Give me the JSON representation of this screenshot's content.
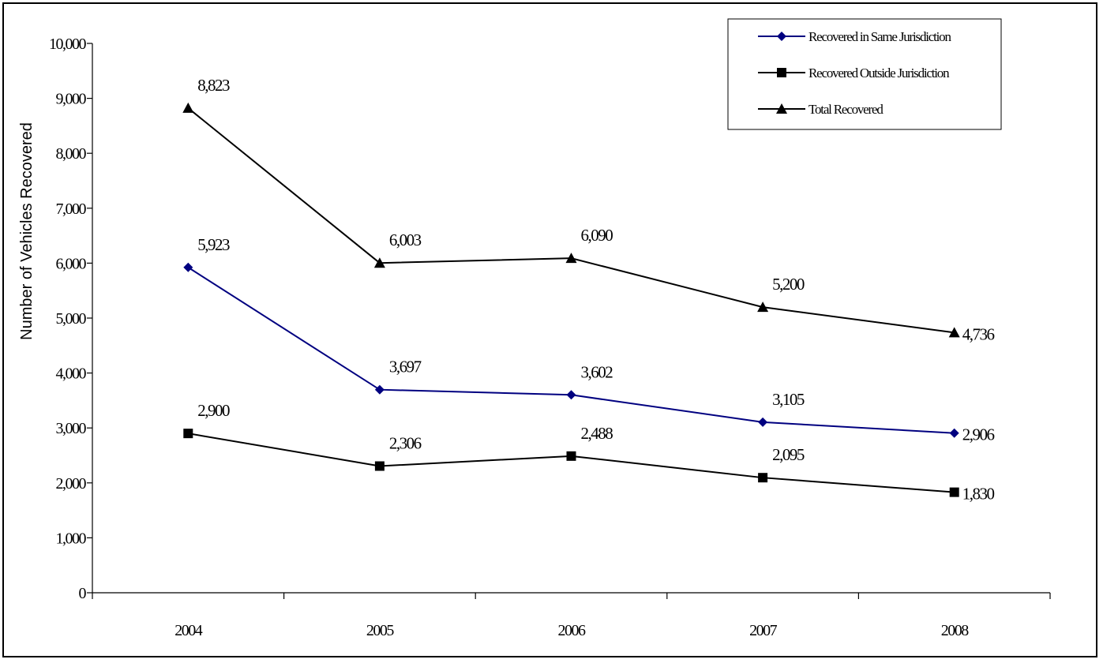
{
  "chart_data": {
    "type": "line",
    "title": "",
    "xlabel": "",
    "ylabel": "Number of Vehicles Recovered",
    "categories": [
      "2004",
      "2005",
      "2006",
      "2007",
      "2008"
    ],
    "ylim": [
      0,
      10000
    ],
    "yticks": [
      0,
      1000,
      2000,
      3000,
      4000,
      5000,
      6000,
      7000,
      8000,
      9000,
      10000
    ],
    "ytick_labels": [
      "0",
      "1,000",
      "2,000",
      "3,000",
      "4,000",
      "5,000",
      "6,000",
      "7,000",
      "8,000",
      "9,000",
      "10,000"
    ],
    "grid": false,
    "legend_position": "top-right",
    "series": [
      {
        "name": "Recovered in Same Jurisdiction",
        "marker": "diamond",
        "color": "#000080",
        "values": [
          5923,
          3697,
          3602,
          3105,
          2906
        ],
        "labels": [
          "5,923",
          "3,697",
          "3,602",
          "3,105",
          "2,906"
        ]
      },
      {
        "name": "Recovered Outside Jurisdiction",
        "marker": "square",
        "color": "#000000",
        "values": [
          2900,
          2306,
          2488,
          2095,
          1830
        ],
        "labels": [
          "2,900",
          "2,306",
          "2,488",
          "2,095",
          "1,830"
        ]
      },
      {
        "name": "Total Recovered",
        "marker": "triangle",
        "color": "#000000",
        "values": [
          8823,
          6003,
          6090,
          5200,
          4736
        ],
        "labels": [
          "8,823",
          "6,003",
          "6,090",
          "5,200",
          "4,736"
        ]
      }
    ]
  }
}
